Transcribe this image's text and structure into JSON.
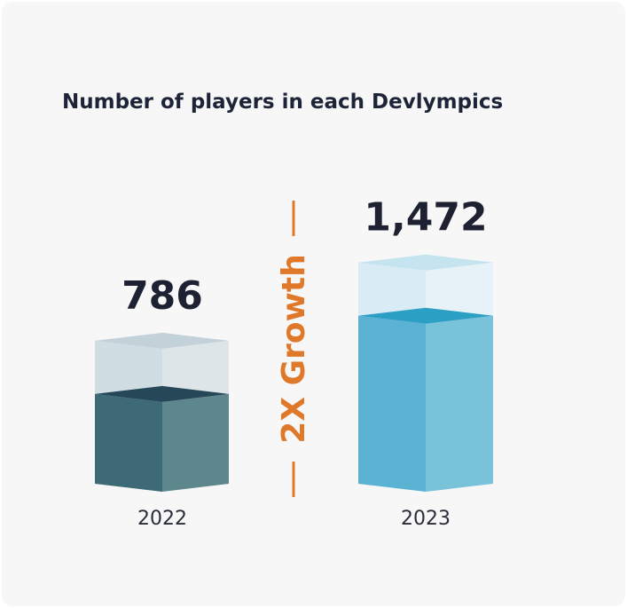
{
  "chart_data": {
    "type": "bar",
    "title": "Number of players in each Devlympics",
    "categories": [
      "2022",
      "2023"
    ],
    "values": [
      786,
      1472
    ],
    "value_labels": [
      "786",
      "1,472"
    ],
    "annotation": "2X Growth",
    "colors": {
      "bar_2022_front": "#3e6a77",
      "bar_2022_side": "#5e878d",
      "bar_2022_top": "#264758",
      "ghost_2022_front": "#d0dde2",
      "ghost_2022_side": "#dde5e8",
      "ghost_2022_top": "#c3d1d8",
      "bar_2023_front": "#5ab3d3",
      "bar_2023_side": "#78c2da",
      "bar_2023_top": "#2c9fc4",
      "ghost_2023_front": "#d9ebf5",
      "ghost_2023_side": "#e6f2f8",
      "ghost_2023_top": "#c6e3f0",
      "annotation": "#e0782a"
    }
  }
}
